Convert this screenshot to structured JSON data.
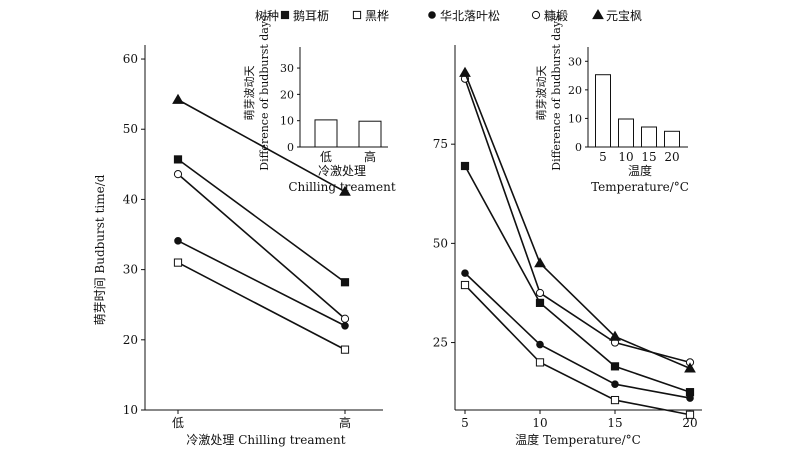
{
  "legend": {
    "title": "树种",
    "items": [
      {
        "marker": "filled-square",
        "label": "鹅耳枥"
      },
      {
        "marker": "open-square",
        "label": "黑桦"
      },
      {
        "marker": "filled-circle",
        "label": "华北落叶松"
      },
      {
        "marker": "open-circle",
        "label": "糠椴"
      },
      {
        "marker": "filled-triangle",
        "label": "元宝枫"
      }
    ]
  },
  "chart_data": [
    {
      "type": "line",
      "xlabel": "冷激处理 Chilling treament",
      "ylabel": "萌芽时间 Budburst time/d",
      "categories": [
        "低",
        "高"
      ],
      "ylim": [
        10,
        62
      ],
      "yticks": [
        10,
        20,
        30,
        40,
        50,
        60
      ],
      "series": [
        {
          "name": "鹅耳枥",
          "marker": "filled-square",
          "values": [
            45.7,
            28.2
          ]
        },
        {
          "name": "黑桦",
          "marker": "open-square",
          "values": [
            31.0,
            18.6
          ]
        },
        {
          "name": "华北落叶松",
          "marker": "filled-circle",
          "values": [
            34.1,
            22.0
          ]
        },
        {
          "name": "糠椴",
          "marker": "open-circle",
          "values": [
            43.6,
            23.0
          ]
        },
        {
          "name": "元宝枫",
          "marker": "filled-triangle",
          "values": [
            54.2,
            41.1
          ]
        }
      ]
    },
    {
      "type": "bar",
      "xlabel_cn": "冷激处理",
      "xlabel_en": "Chilling treament",
      "ylabel_cn": "萌芽波动天",
      "ylabel_en": "Difference of budburst days",
      "categories": [
        "低",
        "高"
      ],
      "values": [
        10.3,
        9.8
      ],
      "ylim": [
        0,
        38
      ],
      "yticks": [
        0,
        10,
        20,
        30
      ]
    },
    {
      "type": "line",
      "xlabel": "温度 Temperature/°C",
      "x": [
        5,
        10,
        15,
        20
      ],
      "xlim": [
        3.5,
        21
      ],
      "ylim": [
        8,
        100
      ],
      "yticks": [
        25,
        50,
        75
      ],
      "series": [
        {
          "name": "鹅耳枥",
          "marker": "filled-square",
          "values": [
            69.5,
            35.0,
            19.0,
            12.5
          ]
        },
        {
          "name": "黑桦",
          "marker": "open-square",
          "values": [
            39.5,
            20.0,
            10.5,
            6.8
          ]
        },
        {
          "name": "华北落叶松",
          "marker": "filled-circle",
          "values": [
            42.5,
            24.5,
            14.5,
            11.0
          ]
        },
        {
          "name": "糠椴",
          "marker": "open-circle",
          "values": [
            91.5,
            37.5,
            25.0,
            20.0
          ]
        },
        {
          "name": "元宝枫",
          "marker": "filled-triangle",
          "values": [
            93.0,
            45.0,
            26.5,
            18.5
          ]
        }
      ]
    },
    {
      "type": "bar",
      "xlabel_cn": "温度",
      "xlabel_en": "Temperature/°C",
      "ylabel_cn": "萌芽波动天",
      "ylabel_en": "Difference of budburst days",
      "categories": [
        "5",
        "10",
        "15",
        "20"
      ],
      "values": [
        25.3,
        9.8,
        7.0,
        5.5
      ],
      "ylim": [
        0,
        35
      ],
      "yticks": [
        0,
        10,
        20,
        30
      ]
    }
  ]
}
